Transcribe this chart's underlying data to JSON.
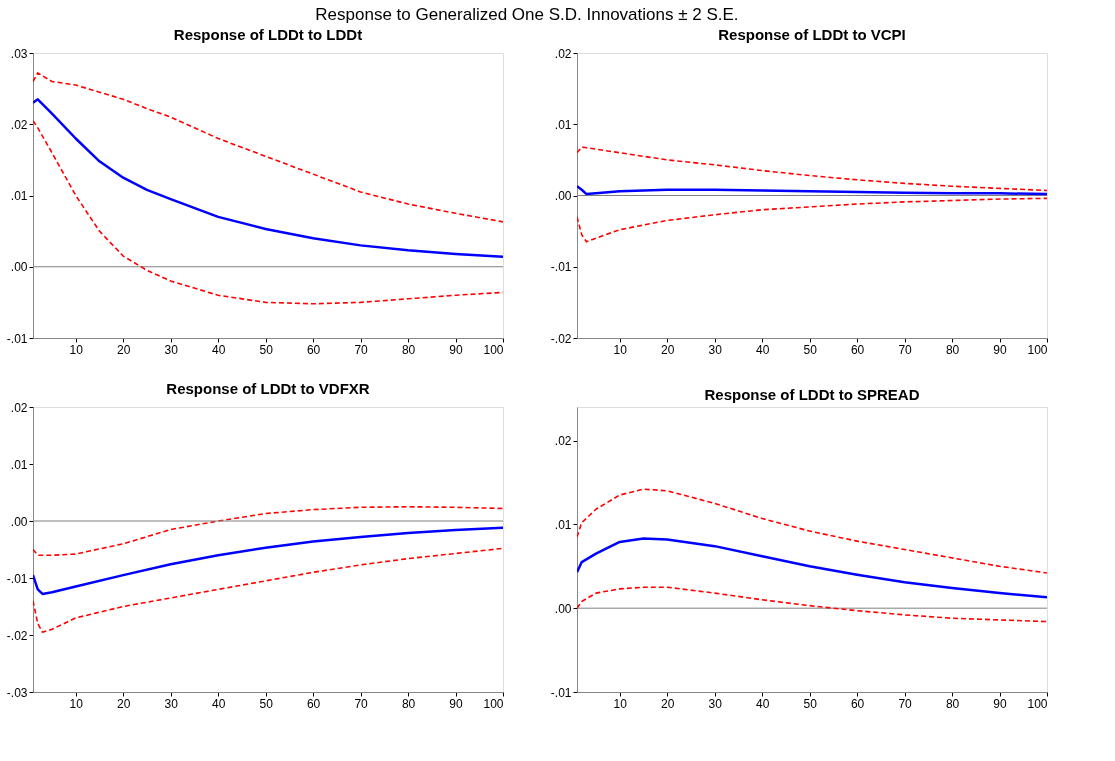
{
  "chart_data": [
    {
      "type": "line",
      "title": "Response of LDDt to LDDt",
      "annotations": [
        "Response to Generalized One S.D. Innovations ± 2 S.E."
      ],
      "grid": false,
      "x": [
        1,
        2,
        5,
        10,
        15,
        20,
        25,
        30,
        40,
        50,
        60,
        70,
        80,
        90,
        100
      ],
      "xlim": [
        1,
        100
      ],
      "xticks": [
        10,
        20,
        30,
        40,
        50,
        60,
        70,
        80,
        90,
        100
      ],
      "ylim": [
        -0.01,
        0.03
      ],
      "yticks": [
        {
          "value": -0.01,
          "label": "-.01"
        },
        {
          "value": 0,
          "label": ".00"
        },
        {
          "value": 0.01,
          "label": ".01"
        },
        {
          "value": 0.02,
          "label": ".02"
        },
        {
          "value": 0.03,
          "label": ".03"
        }
      ],
      "ref_lines": [
        {
          "axis": "y",
          "value": 0,
          "color": "#808080"
        }
      ],
      "series": [
        {
          "color": "#ff0000",
          "line_style": "dashed",
          "values": [
            0.026,
            0.0272,
            0.026,
            0.0255,
            0.0245,
            0.0235,
            0.0222,
            0.021,
            0.018,
            0.0155,
            0.013,
            0.0105,
            0.0088,
            0.0075,
            0.0063
          ]
        },
        {
          "color": "#ff0000",
          "line_style": "dashed",
          "values": [
            0.0205,
            0.0195,
            0.016,
            0.01,
            0.005,
            0.0015,
            -0.0005,
            -0.002,
            -0.004,
            -0.005,
            -0.0052,
            -0.005,
            -0.0045,
            -0.004,
            -0.0036
          ]
        },
        {
          "color": "#0000ff",
          "line_style": "solid",
          "values": [
            0.023,
            0.0235,
            0.0215,
            0.018,
            0.0148,
            0.0125,
            0.0108,
            0.0095,
            0.007,
            0.0053,
            0.004,
            0.003,
            0.0023,
            0.0018,
            0.0014
          ]
        }
      ]
    },
    {
      "type": "line",
      "title": "Response of LDDt to VCPI",
      "grid": false,
      "x": [
        1,
        2,
        3,
        5,
        10,
        20,
        30,
        40,
        50,
        60,
        70,
        80,
        90,
        100
      ],
      "xlim": [
        1,
        100
      ],
      "xticks": [
        10,
        20,
        30,
        40,
        50,
        60,
        70,
        80,
        90,
        100
      ],
      "ylim": [
        -0.02,
        0.02
      ],
      "yticks": [
        {
          "value": -0.02,
          "label": "-.02"
        },
        {
          "value": -0.01,
          "label": "-.01"
        },
        {
          "value": 0,
          "label": ".00"
        },
        {
          "value": 0.01,
          "label": ".01"
        },
        {
          "value": 0.02,
          "label": ".02"
        }
      ],
      "ref_lines": [
        {
          "axis": "y",
          "value": 0,
          "color": "#808080"
        }
      ],
      "series": [
        {
          "color": "#ff0000",
          "line_style": "dashed",
          "values": [
            0.006,
            0.0068,
            0.0067,
            0.0065,
            0.006,
            0.005,
            0.0043,
            0.0035,
            0.0028,
            0.0022,
            0.0017,
            0.0013,
            0.001,
            0.0007
          ]
        },
        {
          "color": "#ff0000",
          "line_style": "dashed",
          "values": [
            -0.003,
            -0.0055,
            -0.0065,
            -0.006,
            -0.0048,
            -0.0035,
            -0.0027,
            -0.002,
            -0.0016,
            -0.0012,
            -0.0009,
            -0.0007,
            -0.0005,
            -0.0004
          ]
        },
        {
          "color": "#0000ff",
          "line_style": "solid",
          "values": [
            0.0013,
            0.0008,
            0.0002,
            0.0003,
            0.0006,
            0.0008,
            0.0008,
            0.0007,
            0.0006,
            0.0005,
            0.0004,
            0.0003,
            0.0003,
            0.0002
          ]
        }
      ]
    },
    {
      "type": "line",
      "title": "Response of LDDt to VDFXR",
      "grid": false,
      "x": [
        1,
        2,
        3,
        5,
        10,
        20,
        30,
        40,
        50,
        60,
        70,
        80,
        90,
        100
      ],
      "xlim": [
        1,
        100
      ],
      "xticks": [
        10,
        20,
        30,
        40,
        50,
        60,
        70,
        80,
        90,
        100
      ],
      "ylim": [
        -0.03,
        0.02
      ],
      "yticks": [
        {
          "value": -0.03,
          "label": "-.03"
        },
        {
          "value": -0.02,
          "label": "-.02"
        },
        {
          "value": -0.01,
          "label": "-.01"
        },
        {
          "value": 0,
          "label": ".00"
        },
        {
          "value": 0.01,
          "label": ".01"
        },
        {
          "value": 0.02,
          "label": ".02"
        }
      ],
      "ref_lines": [
        {
          "axis": "y",
          "value": 0,
          "color": "#808080"
        }
      ],
      "series": [
        {
          "color": "#ff0000",
          "line_style": "dashed",
          "values": [
            -0.005,
            -0.006,
            -0.006,
            -0.006,
            -0.0058,
            -0.004,
            -0.0015,
            0.0,
            0.0013,
            0.002,
            0.0024,
            0.0025,
            0.0024,
            0.0022
          ]
        },
        {
          "color": "#ff0000",
          "line_style": "dashed",
          "values": [
            -0.014,
            -0.018,
            -0.0195,
            -0.019,
            -0.017,
            -0.015,
            -0.0135,
            -0.012,
            -0.0105,
            -0.009,
            -0.0077,
            -0.0066,
            -0.0057,
            -0.0048
          ]
        },
        {
          "color": "#0000ff",
          "line_style": "solid",
          "values": [
            -0.0095,
            -0.012,
            -0.0128,
            -0.0125,
            -0.0115,
            -0.0095,
            -0.0076,
            -0.006,
            -0.0047,
            -0.0036,
            -0.0028,
            -0.0021,
            -0.0016,
            -0.0012
          ]
        }
      ]
    },
    {
      "type": "line",
      "title": "Response of LDDt to SPREAD",
      "grid": false,
      "x": [
        1,
        2,
        5,
        10,
        15,
        20,
        30,
        40,
        50,
        60,
        70,
        80,
        90,
        100
      ],
      "xlim": [
        1,
        100
      ],
      "xticks": [
        10,
        20,
        30,
        40,
        50,
        60,
        70,
        80,
        90,
        100
      ],
      "ylim": [
        -0.01,
        0.024
      ],
      "yticks": [
        {
          "value": -0.01,
          "label": "-.01"
        },
        {
          "value": 0,
          "label": ".00"
        },
        {
          "value": 0.01,
          "label": ".01"
        },
        {
          "value": 0.02,
          "label": ".02"
        }
      ],
      "ref_lines": [
        {
          "axis": "y",
          "value": 0,
          "color": "#808080"
        }
      ],
      "series": [
        {
          "color": "#ff0000",
          "line_style": "dashed",
          "values": [
            0.0085,
            0.0102,
            0.0118,
            0.0135,
            0.0142,
            0.014,
            0.0125,
            0.0107,
            0.0092,
            0.008,
            0.007,
            0.006,
            0.005,
            0.0042
          ]
        },
        {
          "color": "#ff0000",
          "line_style": "dashed",
          "values": [
            0.0,
            0.0008,
            0.0018,
            0.0023,
            0.0025,
            0.0025,
            0.0018,
            0.001,
            0.0003,
            -0.0003,
            -0.0008,
            -0.0012,
            -0.0014,
            -0.0016
          ]
        },
        {
          "color": "#0000ff",
          "line_style": "solid",
          "values": [
            0.0043,
            0.0055,
            0.0065,
            0.0079,
            0.0083,
            0.0082,
            0.0074,
            0.0062,
            0.005,
            0.004,
            0.0031,
            0.0024,
            0.0018,
            0.0013
          ]
        }
      ]
    }
  ]
}
